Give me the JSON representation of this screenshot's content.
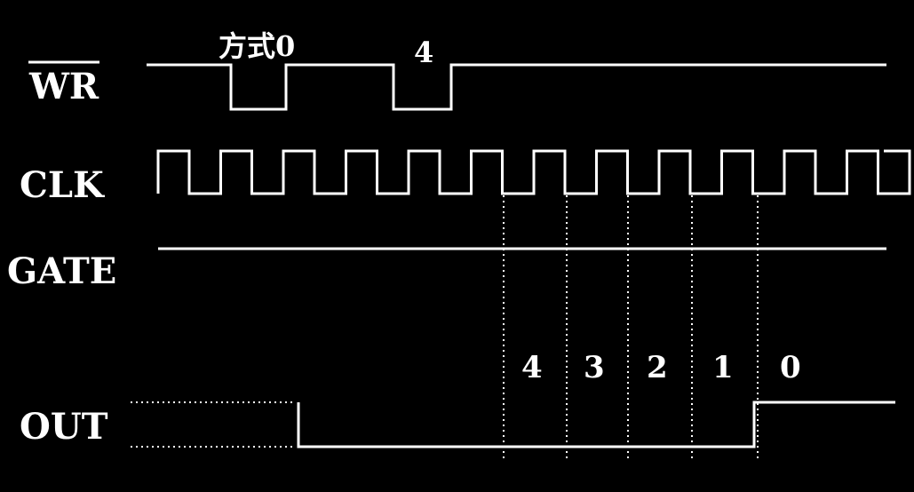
{
  "signals": {
    "wr": "WR",
    "clk": "CLK",
    "gate": "GATE",
    "out": "OUT"
  },
  "annotations": {
    "mode": "方式0",
    "count_write": "4"
  },
  "count_sequence": [
    "4",
    "3",
    "2",
    "1",
    "0"
  ],
  "colors": {
    "background": "#000000",
    "trace": "#ffffff"
  }
}
